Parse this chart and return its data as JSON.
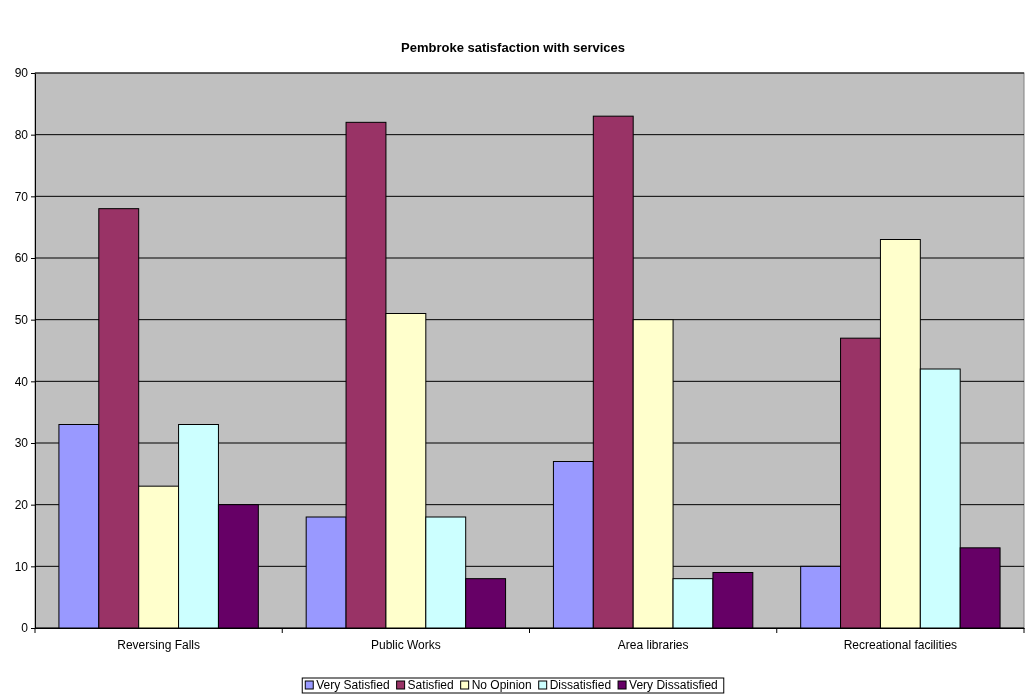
{
  "chart_data": {
    "type": "bar",
    "title": "Pembroke satisfaction with services",
    "categories": [
      "Reversing Falls",
      "Public Works",
      "Area libraries",
      "Recreational facilities"
    ],
    "series": [
      {
        "name": "Very Satisfied",
        "color": "#9999ff",
        "values": [
          33,
          18,
          27,
          10
        ]
      },
      {
        "name": "Satisfied",
        "color": "#993366",
        "values": [
          68,
          82,
          83,
          47
        ]
      },
      {
        "name": "No Opinion",
        "color": "#ffffcc",
        "values": [
          23,
          51,
          50,
          63
        ]
      },
      {
        "name": "Dissatisfied",
        "color": "#ccffff",
        "values": [
          33,
          18,
          8,
          42
        ]
      },
      {
        "name": "Very Dissatisfied",
        "color": "#660066",
        "values": [
          20,
          8,
          9,
          13
        ]
      }
    ],
    "ylim": [
      0,
      90
    ],
    "yticks": [
      0,
      10,
      20,
      30,
      40,
      50,
      60,
      70,
      80,
      90
    ],
    "grid": "y",
    "legend": "bottom"
  }
}
